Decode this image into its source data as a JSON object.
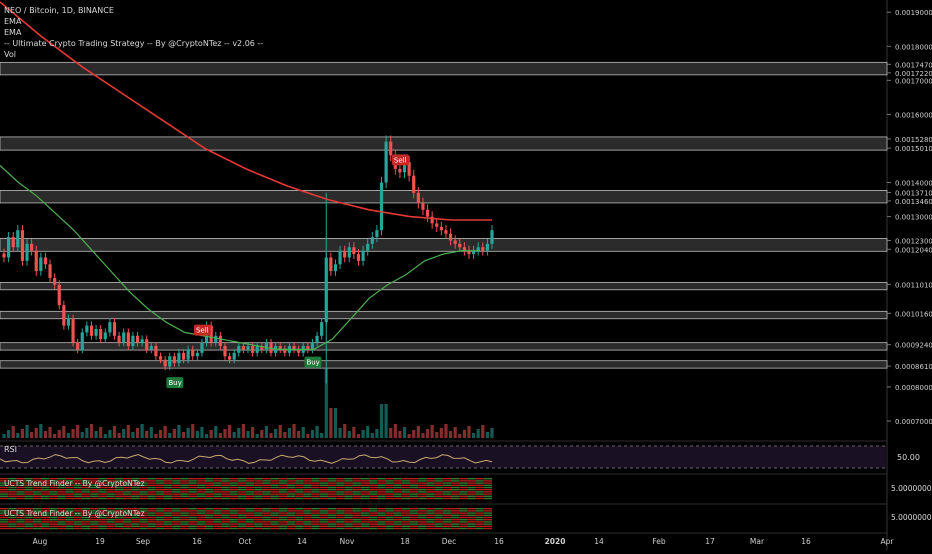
{
  "header": {
    "symbol_line": "NEO / Bitcoin, 1D, BINANCE",
    "indicators": [
      "EMA",
      "EMA",
      "-- Ultimate Crypto Trading Strategy -- By @CryptoNTez -- v2.06 --",
      "Vol"
    ]
  },
  "panes": {
    "rsi_label": "RSI",
    "rsi_value": "50.00",
    "trend1_label": "UCTS Trend Finder -- By @CryptoNTez",
    "trend1_value": "5.0000000",
    "trend2_label": "UCTS Trend Finder -- By @CryptoNTez",
    "trend2_value": "5.0000000"
  },
  "colors": {
    "background": "#000000",
    "up": "#26a69a",
    "down": "#ef5350",
    "ema_fast": "#4caf50",
    "ema_slow": "#e53935",
    "rsi": "#c8a96e",
    "rsi_band": "#2a1a3a"
  },
  "chart_data": {
    "type": "candlestick",
    "title": "NEO / Bitcoin, 1D, BINANCE",
    "xlabel": "",
    "ylabel": "",
    "x_ticks": [
      "Aug",
      "19",
      "Sep",
      "16",
      "Oct",
      "14",
      "Nov",
      "18",
      "Dec",
      "16",
      "2020",
      "14",
      "Feb",
      "17",
      "Mar",
      "16",
      "Apr"
    ],
    "y_ticks": [
      "0.00190000",
      "0.00180000",
      "0.00174700",
      "0.00172200",
      "0.00170000",
      "0.00160000",
      "0.00152800",
      "0.00150100",
      "0.00140000",
      "0.00137100",
      "0.00134600",
      "0.00130000",
      "0.00123000",
      "0.00120400",
      "0.00110100",
      "0.00101600",
      "0.00092400",
      "0.00086100",
      "0.00080000",
      "0.00070000"
    ],
    "ylim": [
      0.00065,
      0.00193
    ],
    "zones": [
      {
        "low": 0.001722,
        "high": 0.001747
      },
      {
        "low": 0.001501,
        "high": 0.001528
      },
      {
        "low": 0.001346,
        "high": 0.001371
      },
      {
        "low": 0.001204,
        "high": 0.00123
      },
      {
        "low": 0.001091,
        "high": 0.001101
      },
      {
        "low": 0.001006,
        "high": 0.001016
      },
      {
        "low": 0.000914,
        "high": 0.000924
      },
      {
        "low": 0.000861,
        "high": 0.000871
      }
    ],
    "close_series": [
      0.00118,
      0.00124,
      0.00121,
      0.00126,
      0.00117,
      0.00122,
      0.0012,
      0.00114,
      0.00118,
      0.00116,
      0.00112,
      0.0011,
      0.00104,
      0.00098,
      0.001,
      0.00093,
      0.00091,
      0.00096,
      0.00098,
      0.00095,
      0.00097,
      0.00094,
      0.00096,
      0.00099,
      0.00095,
      0.00093,
      0.00096,
      0.00092,
      0.00095,
      0.00093,
      0.00094,
      0.00091,
      0.00092,
      0.00089,
      0.00088,
      0.00086,
      0.00089,
      0.00087,
      0.0009,
      0.00088,
      0.00091,
      0.00089,
      0.0009,
      0.00093,
      0.00098,
      0.00093,
      0.00095,
      0.00092,
      0.00089,
      0.00088,
      0.0009,
      0.00092,
      0.00091,
      0.00092,
      0.0009,
      0.00092,
      0.00091,
      0.00093,
      0.0009,
      0.00092,
      0.00091,
      0.0009,
      0.00092,
      0.00091,
      0.0009,
      0.00092,
      0.00091,
      0.00093,
      0.00095,
      0.00099,
      0.00118,
      0.00114,
      0.00116,
      0.0012,
      0.00118,
      0.00121,
      0.00119,
      0.00117,
      0.0012,
      0.00122,
      0.00124,
      0.00126,
      0.0014,
      0.00152,
      0.00148,
      0.00144,
      0.00143,
      0.00146,
      0.00142,
      0.00137,
      0.00134,
      0.00132,
      0.0013,
      0.00128,
      0.00127,
      0.00126,
      0.00125,
      0.00123,
      0.00122,
      0.00121,
      0.0012,
      0.00119,
      0.0012,
      0.00121,
      0.0012,
      0.00122,
      0.00126
    ],
    "ema_fast": [
      0.00145,
      0.0014,
      0.00136,
      0.00131,
      0.00126,
      0.0012,
      0.00114,
      0.00108,
      0.00103,
      0.00099,
      0.00096,
      0.00095,
      0.00094,
      0.00093,
      0.00092,
      0.00091,
      0.00091,
      0.00091,
      0.00094,
      0.001,
      0.00106,
      0.0011,
      0.00113,
      0.00117,
      0.00119,
      0.0012,
      0.0012
    ],
    "ema_slow": [
      0.00193,
      0.00183,
      0.00174,
      0.00166,
      0.00158,
      0.0015,
      0.00144,
      0.00139,
      0.00135,
      0.00132,
      0.0013,
      0.00129,
      0.00129
    ],
    "markers": [
      {
        "label": "Buy",
        "index": 37
      },
      {
        "label": "Sell",
        "index": 43
      },
      {
        "label": "Buy",
        "index": 67
      },
      {
        "label": "Sell",
        "index": 86
      }
    ]
  }
}
